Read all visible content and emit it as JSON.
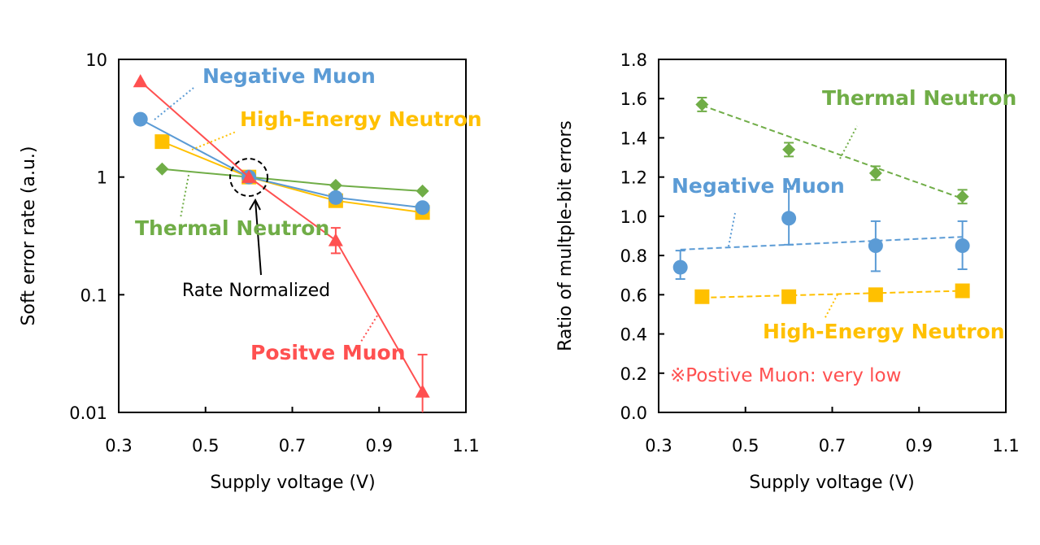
{
  "colors": {
    "negative_muon": "#5B9BD5",
    "positive_muon": "#FF5050",
    "high_energy_neutron": "#FFC000",
    "thermal_neutron": "#70AD47"
  },
  "chart_data": [
    {
      "type": "line",
      "title": "",
      "xlabel": "Supply voltage (V)",
      "ylabel": "Soft error rate (a.u.)",
      "xlim": [
        0.3,
        1.1
      ],
      "ylim": [
        0.01,
        10
      ],
      "yscale": "log",
      "grid": false,
      "x_ticks": [
        "0.3",
        "0.5",
        "0.7",
        "0.9",
        "1.1"
      ],
      "y_ticks": [
        "0.01",
        "0.1",
        "1",
        "10"
      ],
      "annotation": "Rate Normalized",
      "series": [
        {
          "name": "Positve Muon",
          "color": "#FF5050",
          "marker": "triangle",
          "x": [
            0.35,
            0.6,
            0.8,
            1.0
          ],
          "y": [
            6.5,
            1.0,
            0.29,
            0.015
          ],
          "err_low": [
            null,
            null,
            0.225,
            0.005
          ],
          "err_high": [
            null,
            null,
            0.37,
            0.031
          ]
        },
        {
          "name": "Negative Muon",
          "color": "#5B9BD5",
          "marker": "circle",
          "x": [
            0.35,
            0.6,
            0.8,
            1.0
          ],
          "y": [
            3.1,
            1.0,
            0.67,
            0.55
          ]
        },
        {
          "name": "High-Energy Neutron",
          "color": "#FFC000",
          "marker": "square",
          "x": [
            0.4,
            0.6,
            0.8,
            1.0
          ],
          "y": [
            2.0,
            1.0,
            0.63,
            0.5
          ]
        },
        {
          "name": "Thermal Neutron",
          "color": "#70AD47",
          "marker": "diamond",
          "x": [
            0.4,
            0.6,
            0.8,
            1.0
          ],
          "y": [
            1.17,
            1.0,
            0.85,
            0.76
          ]
        }
      ]
    },
    {
      "type": "scatter",
      "title": "",
      "xlabel": "Supply voltage (V)",
      "ylabel": "Ratio of multple-bit errors",
      "xlim": [
        0.3,
        1.1
      ],
      "ylim": [
        0.0,
        1.8
      ],
      "grid": false,
      "trendlines": "linear, dashed",
      "x_ticks": [
        "0.3",
        "0.5",
        "0.7",
        "0.9",
        "1.1"
      ],
      "y_ticks": [
        "0.0",
        "0.2",
        "0.4",
        "0.6",
        "0.8",
        "1.0",
        "1.2",
        "1.4",
        "1.6",
        "1.8"
      ],
      "note": "※Postive Muon: very low",
      "series": [
        {
          "name": "Thermal Neutron",
          "color": "#70AD47",
          "marker": "diamond",
          "x": [
            0.4,
            0.6,
            0.8,
            1.0
          ],
          "y": [
            1.57,
            1.34,
            1.22,
            1.1
          ],
          "err_low": [
            1.535,
            1.305,
            1.185,
            1.065
          ],
          "err_high": [
            1.605,
            1.375,
            1.255,
            1.135
          ],
          "trend": [
            1.565,
            1.09
          ]
        },
        {
          "name": "Negative Muon",
          "color": "#5B9BD5",
          "marker": "circle",
          "x": [
            0.35,
            0.6,
            0.8,
            1.0
          ],
          "y": [
            0.74,
            0.99,
            0.85,
            0.85
          ],
          "err_low": [
            0.68,
            0.855,
            0.72,
            0.73
          ],
          "err_high": [
            0.825,
            1.14,
            0.975,
            0.975
          ],
          "trend": [
            0.83,
            0.895
          ]
        },
        {
          "name": "High-Energy Neutron",
          "color": "#FFC000",
          "marker": "square",
          "x": [
            0.4,
            0.6,
            0.8,
            1.0
          ],
          "y": [
            0.59,
            0.59,
            0.6,
            0.62
          ],
          "trend": [
            0.585,
            0.62
          ]
        }
      ]
    }
  ]
}
